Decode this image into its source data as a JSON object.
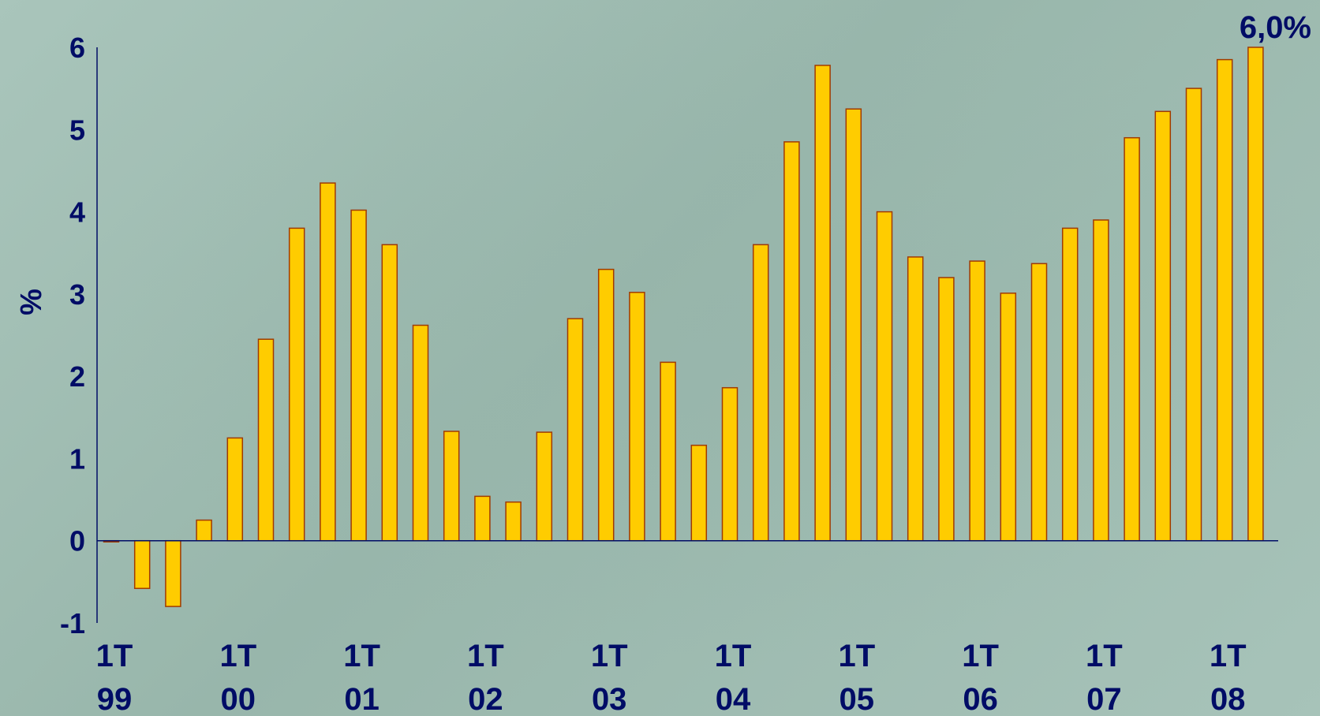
{
  "chart_data": {
    "type": "bar",
    "ylabel": "%",
    "ylim": [
      -1,
      6
    ],
    "yticks": [
      "-1",
      "0",
      "1",
      "2",
      "3",
      "4",
      "5",
      "6"
    ],
    "xtick_labels": [
      {
        "top": "1T",
        "bottom": "99"
      },
      {
        "top": "1T",
        "bottom": "00"
      },
      {
        "top": "1T",
        "bottom": "01"
      },
      {
        "top": "1T",
        "bottom": "02"
      },
      {
        "top": "1T",
        "bottom": "03"
      },
      {
        "top": "1T",
        "bottom": "04"
      },
      {
        "top": "1T",
        "bottom": "05"
      },
      {
        "top": "1T",
        "bottom": "06"
      },
      {
        "top": "1T",
        "bottom": "07"
      },
      {
        "top": "1T",
        "bottom": "08"
      }
    ],
    "values": [
      0.0,
      -0.58,
      -0.8,
      0.25,
      1.25,
      2.45,
      3.8,
      4.35,
      4.02,
      3.6,
      2.62,
      1.33,
      0.54,
      0.47,
      1.32,
      2.7,
      3.3,
      3.02,
      2.17,
      1.16,
      1.86,
      3.6,
      4.85,
      5.78,
      5.25,
      4.0,
      3.45,
      3.2,
      3.4,
      3.01,
      3.37,
      3.8,
      3.9,
      4.9,
      5.22,
      5.5,
      5.85,
      6.0
    ],
    "annotation": "6,0%",
    "colors": {
      "bar_fill": "#ffcc00",
      "bar_stroke": "#a03a00",
      "axis": "#000c66",
      "text": "#000c66"
    }
  }
}
